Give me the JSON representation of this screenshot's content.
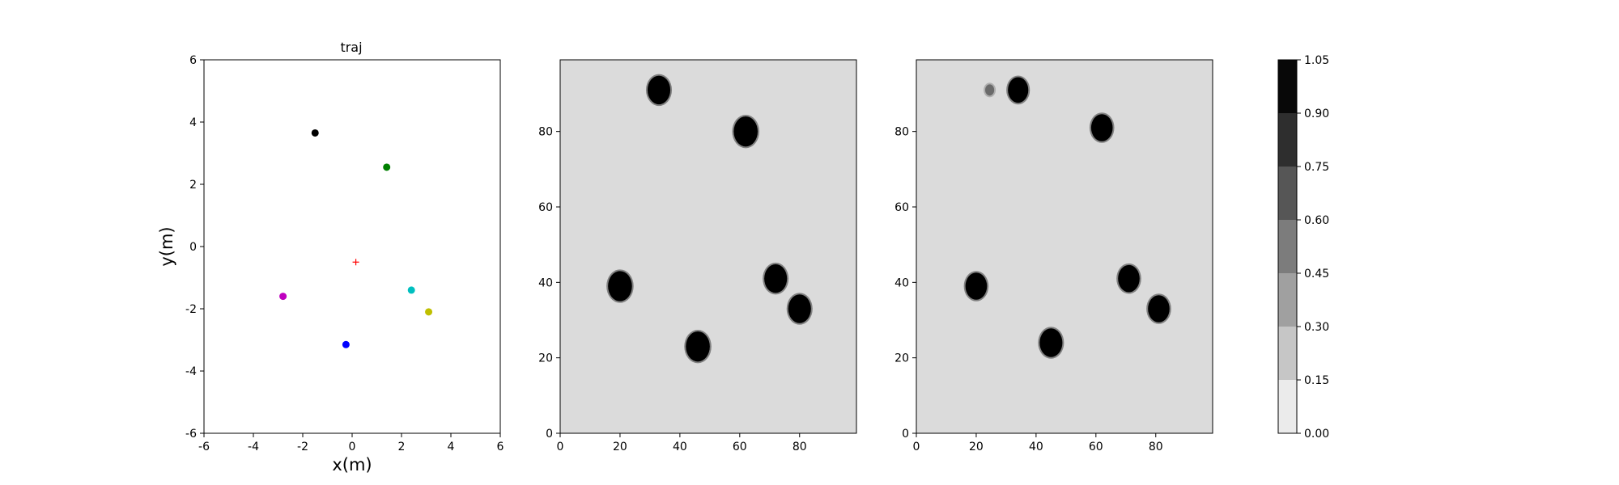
{
  "chart_data": [
    {
      "type": "scatter",
      "title": "traj",
      "xlabel": "x(m)",
      "ylabel": "y(m)",
      "xlim": [
        -6,
        6
      ],
      "ylim": [
        -6,
        6
      ],
      "xticks": [
        -6,
        -4,
        -2,
        0,
        2,
        4,
        6
      ],
      "yticks": [
        -6,
        -4,
        -2,
        0,
        2,
        4,
        6
      ],
      "grid": false,
      "points": [
        {
          "x": -1.5,
          "y": 3.65,
          "color": "#000000",
          "marker": "dot"
        },
        {
          "x": 1.4,
          "y": 2.55,
          "color": "#008000",
          "marker": "dot"
        },
        {
          "x": 0.15,
          "y": -0.5,
          "color": "#ff0000",
          "marker": "plus"
        },
        {
          "x": 2.4,
          "y": -1.4,
          "color": "#00bfbf",
          "marker": "dot"
        },
        {
          "x": -2.8,
          "y": -1.6,
          "color": "#bf00bf",
          "marker": "dot"
        },
        {
          "x": 3.1,
          "y": -2.1,
          "color": "#bfbf00",
          "marker": "dot"
        },
        {
          "x": -0.25,
          "y": -3.15,
          "color": "#0000ff",
          "marker": "dot"
        }
      ]
    },
    {
      "type": "heatmap",
      "title": "",
      "xlim": [
        0,
        99
      ],
      "ylim": [
        0,
        99
      ],
      "xticks": [
        0,
        20,
        40,
        60,
        80
      ],
      "yticks": [
        0,
        20,
        40,
        60,
        80
      ],
      "background_value": 0.07,
      "blobs": [
        {
          "x": 33,
          "y": 91,
          "radius": 3.8,
          "value": 1.0
        },
        {
          "x": 62,
          "y": 80,
          "radius": 4.0,
          "value": 1.0
        },
        {
          "x": 20,
          "y": 39,
          "radius": 4.0,
          "value": 1.0
        },
        {
          "x": 72,
          "y": 41,
          "radius": 3.8,
          "value": 1.0
        },
        {
          "x": 80,
          "y": 33,
          "radius": 3.8,
          "value": 1.0
        },
        {
          "x": 46,
          "y": 23,
          "radius": 4.0,
          "value": 1.0
        }
      ]
    },
    {
      "type": "heatmap",
      "title": "",
      "xlim": [
        0,
        99
      ],
      "ylim": [
        0,
        99
      ],
      "xticks": [
        0,
        20,
        40,
        60,
        80
      ],
      "yticks": [
        0,
        20,
        40,
        60,
        80
      ],
      "background_value": 0.07,
      "blobs": [
        {
          "x": 24.5,
          "y": 91,
          "radius": 1.5,
          "value": 0.55
        },
        {
          "x": 34,
          "y": 91,
          "radius": 3.4,
          "value": 1.0
        },
        {
          "x": 62,
          "y": 81,
          "radius": 3.6,
          "value": 1.0
        },
        {
          "x": 20,
          "y": 39,
          "radius": 3.6,
          "value": 1.0
        },
        {
          "x": 71,
          "y": 41,
          "radius": 3.6,
          "value": 1.0
        },
        {
          "x": 81,
          "y": 33,
          "radius": 3.6,
          "value": 1.0
        },
        {
          "x": 45,
          "y": 24,
          "radius": 3.8,
          "value": 1.0
        }
      ]
    }
  ],
  "colorbar": {
    "levels": [
      0.0,
      0.15,
      0.3,
      0.45,
      0.6,
      0.75,
      0.9,
      1.05
    ],
    "labels": [
      "0.00",
      "0.15",
      "0.30",
      "0.45",
      "0.60",
      "0.75",
      "0.90",
      "1.05"
    ],
    "colors": [
      "#ebebeb",
      "#c6c6c6",
      "#a0a0a0",
      "#7c7c7c",
      "#565656",
      "#2e2e2e",
      "#080808"
    ]
  }
}
